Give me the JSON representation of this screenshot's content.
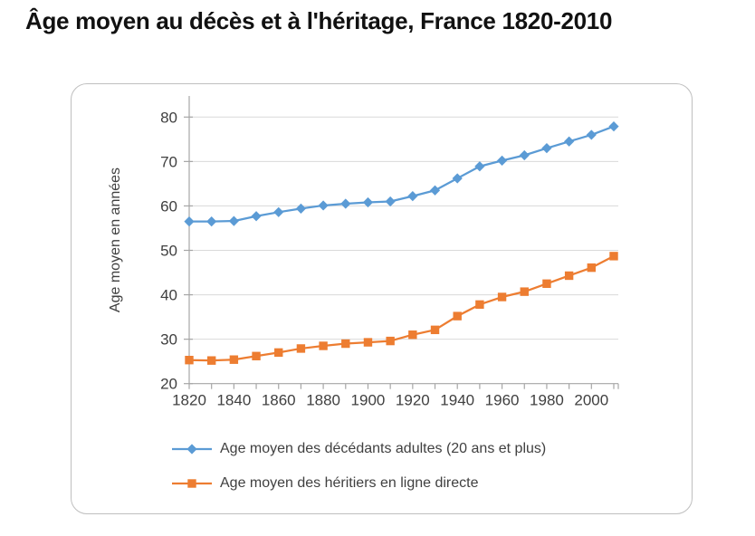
{
  "page": {
    "title": "Âge moyen au décès et à l'héritage, France 1820-2010"
  },
  "colors": {
    "series_decedents": "#5B9BD5",
    "series_heirs": "#ED7D31",
    "gridline": "#D9D9D9",
    "axis": "#A6A6A6",
    "tick_label": "#404040",
    "frame_border": "#BFBFBF",
    "title_text": "#111111"
  },
  "chart_data": {
    "type": "line",
    "title": "Âge moyen au décès et à l'héritage, France 1820-2010",
    "xlabel": "",
    "ylabel": "Age moyen en années",
    "ylim": [
      20,
      80
    ],
    "ytick_step": 10,
    "grid": true,
    "legend_position": "bottom-left",
    "x": [
      1820,
      1830,
      1840,
      1850,
      1860,
      1870,
      1880,
      1890,
      1900,
      1910,
      1920,
      1930,
      1940,
      1950,
      1960,
      1970,
      1980,
      1990,
      2000,
      2010
    ],
    "x_tick_labels": [
      "1820",
      "1840",
      "1860",
      "1880",
      "1900",
      "1920",
      "1940",
      "1960",
      "1980",
      "2000"
    ],
    "series": [
      {
        "name": "Age moyen des décédants adultes (20 ans et plus)",
        "color": "#5B9BD5",
        "marker": "diamond",
        "values": [
          56.5,
          56.5,
          56.6,
          57.7,
          58.6,
          59.4,
          60.1,
          60.5,
          60.8,
          61.0,
          62.2,
          63.5,
          66.2,
          68.9,
          70.2,
          71.4,
          73.0,
          74.5,
          76.0,
          77.9
        ]
      },
      {
        "name": "Age moyen des héritiers en ligne directe",
        "color": "#ED7D31",
        "marker": "square",
        "values": [
          25.3,
          25.2,
          25.4,
          26.2,
          27.0,
          27.9,
          28.5,
          29.0,
          29.3,
          29.6,
          31.0,
          32.1,
          35.2,
          37.8,
          39.5,
          40.7,
          42.5,
          44.3,
          46.1,
          48.7
        ]
      }
    ]
  }
}
